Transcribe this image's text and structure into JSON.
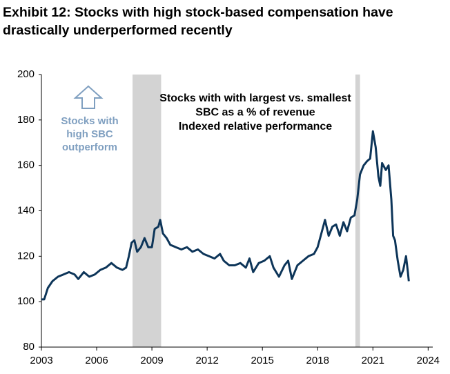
{
  "chart_data": {
    "type": "line",
    "title": [
      "Exhibit 12: Stocks with high stock-based compensation have",
      "drastically underperformed recently"
    ],
    "annotation": [
      "Stocks with with largest vs. smallest",
      "SBC as a % of revenue",
      "Indexed relative performance"
    ],
    "arrow_note": [
      "Stocks with",
      "high SBC",
      "outperform"
    ],
    "shaded_periods": [
      [
        2007.95,
        2009.5
      ],
      [
        2020.05,
        2020.3
      ]
    ],
    "shade_color": "#d3d3d3",
    "xlim": [
      2003,
      2024.25
    ],
    "xticks": [
      2003,
      2006,
      2009,
      2012,
      2015,
      2018,
      2021,
      2024
    ],
    "ylim": [
      80,
      200
    ],
    "yticks": [
      80,
      100,
      120,
      140,
      160,
      180,
      200
    ],
    "grid": false,
    "series": [
      {
        "color": "#0d3559",
        "x": [
          2003.0,
          2003.15,
          2003.35,
          2003.6,
          2003.9,
          2004.2,
          2004.5,
          2004.8,
          2005.0,
          2005.3,
          2005.6,
          2005.9,
          2006.2,
          2006.5,
          2006.8,
          2007.1,
          2007.4,
          2007.6,
          2007.75,
          2007.9,
          2008.05,
          2008.2,
          2008.4,
          2008.6,
          2008.8,
          2009.0,
          2009.15,
          2009.35,
          2009.45,
          2009.6,
          2009.8,
          2010.0,
          2010.3,
          2010.6,
          2010.9,
          2011.2,
          2011.5,
          2011.8,
          2012.1,
          2012.4,
          2012.7,
          2012.9,
          2013.2,
          2013.5,
          2013.8,
          2014.1,
          2014.3,
          2014.5,
          2014.8,
          2015.1,
          2015.4,
          2015.6,
          2015.9,
          2016.2,
          2016.4,
          2016.6,
          2016.9,
          2017.2,
          2017.5,
          2017.8,
          2018.0,
          2018.2,
          2018.4,
          2018.6,
          2018.8,
          2019.0,
          2019.2,
          2019.4,
          2019.6,
          2019.8,
          2020.0,
          2020.15,
          2020.3,
          2020.5,
          2020.7,
          2020.85,
          2021.0,
          2021.15,
          2021.3,
          2021.4,
          2021.5,
          2021.7,
          2021.85,
          2022.0,
          2022.1,
          2022.2,
          2022.35,
          2022.5,
          2022.65,
          2022.8,
          2022.9,
          2022.95
        ],
        "values": [
          101,
          101,
          106,
          109,
          111,
          112,
          113,
          112,
          110,
          113,
          111,
          112,
          114,
          115,
          117,
          115,
          114,
          115,
          120,
          126,
          127,
          122,
          124,
          128,
          124,
          124,
          132,
          133,
          136,
          130,
          128,
          125,
          124,
          123,
          124,
          122,
          123,
          121,
          120,
          119,
          121,
          118,
          116,
          116,
          117,
          115,
          119,
          113,
          117,
          118,
          120,
          115,
          111,
          116,
          118,
          110,
          116,
          118,
          120,
          121,
          124,
          130,
          136,
          129,
          133,
          134,
          129,
          135,
          131,
          137,
          138,
          145,
          156,
          160,
          162,
          163,
          175,
          168,
          155,
          151,
          161,
          158,
          160,
          145,
          129,
          127,
          118,
          111,
          114,
          120,
          113,
          109
        ]
      }
    ]
  }
}
